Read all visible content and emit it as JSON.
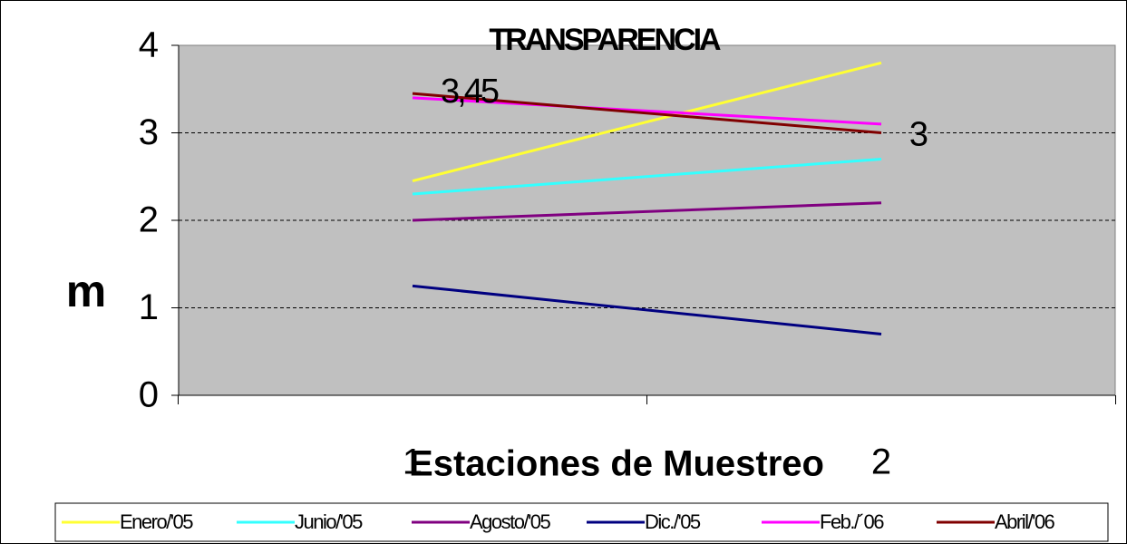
{
  "chart_data": {
    "type": "line",
    "title": "TRANSPARENCIA",
    "categories": [
      "1",
      "2"
    ],
    "series": [
      {
        "name": "Enero/'05",
        "color": "#ffff33",
        "values": [
          2.45,
          3.8
        ]
      },
      {
        "name": "Junio/'05",
        "color": "#33ffff",
        "values": [
          2.3,
          2.7
        ]
      },
      {
        "name": "Agosto/'05",
        "color": "#800080",
        "values": [
          2.0,
          2.2
        ]
      },
      {
        "name": "Dic./'05",
        "color": "#000080",
        "values": [
          1.25,
          0.7
        ]
      },
      {
        "name": "Feb./´06",
        "color": "#ff00ff",
        "values": [
          3.4,
          3.1
        ]
      },
      {
        "name": "Abril/'06",
        "color": "#800000",
        "values": [
          3.45,
          3.0
        ],
        "value_labels": [
          "3,45",
          "3"
        ]
      }
    ],
    "ylabel": "m",
    "xlabel": "Estaciones de Muestreo",
    "ylim": [
      0,
      4
    ],
    "yticks": [
      0,
      1,
      2,
      3,
      4
    ],
    "grid": true,
    "legend": "bottom"
  }
}
